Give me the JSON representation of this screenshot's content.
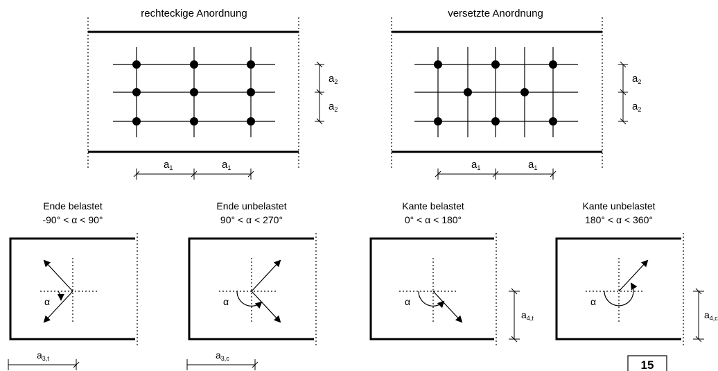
{
  "top_diagrams": {
    "rect": {
      "title": "rechteckige Anordnung",
      "a1": "a",
      "a1_sub": "1",
      "a2": "a",
      "a2_sub": "2"
    },
    "staggered": {
      "title": "versetzte Anordnung",
      "a1": "a",
      "a1_sub": "1",
      "a2": "a",
      "a2_sub": "2"
    }
  },
  "bottom_diagrams": [
    {
      "title": "Ende belastet",
      "range": "-90° < α < 90°",
      "alpha": "α",
      "dim": "a",
      "dim_sub": "3,t"
    },
    {
      "title": "Ende unbelastet",
      "range": "90° < α < 270°",
      "alpha": "α",
      "dim": "a",
      "dim_sub": "3,c"
    },
    {
      "title": "Kante belastet",
      "range": "0° < α < 180°",
      "alpha": "α",
      "dim": "a",
      "dim_sub": "4,t"
    },
    {
      "title": "Kante unbelastet",
      "range": "180° < α < 360°",
      "alpha": "α",
      "dim": "a",
      "dim_sub": "4,c"
    }
  ],
  "page_number": "15",
  "colors": {
    "ink": "#000000",
    "background": "#ffffff"
  }
}
